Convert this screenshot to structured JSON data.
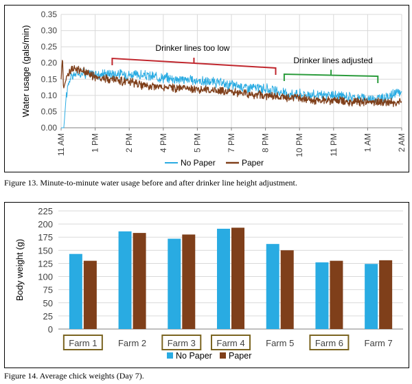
{
  "figures": {
    "fig13_caption": "Figure 13.  Minute-to-minute water usage before and after drinker line height adjustment.",
    "fig14_caption": "Figure 14.  Average chick weights (Day 7)."
  },
  "colors": {
    "no_paper": "#29ABE2",
    "paper": "#7F3F1A",
    "red_annotation": "#C0262D",
    "green_annotation": "#2A9B3B",
    "highlight_box": "#7A6420",
    "grid": "#D9D9D9",
    "axis_text": "#404040"
  },
  "chart_data": [
    {
      "type": "line",
      "title": "",
      "xlabel": "",
      "ylabel": "Water usage (gals/min)",
      "ylim": [
        0,
        0.35
      ],
      "yticks": [
        "0.00",
        "0.05",
        "0.10",
        "0.15",
        "0.20",
        "0.25",
        "0.30",
        "0.35"
      ],
      "xticks": [
        "11 AM",
        "1 PM",
        "2 PM",
        "4 PM",
        "5 PM",
        "7 PM",
        "8 PM",
        "10 PM",
        "11 PM",
        "1 AM",
        "2 AM"
      ],
      "grid": "horizontal and vertical",
      "legend": "bottom",
      "annotations": [
        {
          "text": "Drinker lines too low",
          "color": "red",
          "from_tick": 1.5,
          "to_tick": 6.3
        },
        {
          "text": "Drinker lines adjusted",
          "color": "green",
          "from_tick": 6.55,
          "to_tick": 9.3
        }
      ],
      "series": [
        {
          "name": "No Paper",
          "color_key": "no_paper",
          "x_tick_position": [
            0,
            0.08,
            0.15,
            0.25,
            0.4,
            0.6,
            0.8,
            1.0,
            1.5,
            2.0,
            2.5,
            3.0,
            3.5,
            4.0,
            4.5,
            5.0,
            5.5,
            6.0,
            6.3,
            6.5,
            7.0,
            7.5,
            8.0,
            8.5,
            9.0,
            9.5,
            9.8,
            10.0
          ],
          "values": [
            0.0,
            0.0,
            0.1,
            0.15,
            0.165,
            0.17,
            0.168,
            0.165,
            0.168,
            0.165,
            0.16,
            0.155,
            0.15,
            0.145,
            0.14,
            0.132,
            0.125,
            0.12,
            0.113,
            0.106,
            0.105,
            0.1,
            0.1,
            0.095,
            0.09,
            0.092,
            0.105,
            0.11
          ]
        },
        {
          "name": "Paper",
          "color_key": "paper",
          "x_tick_position": [
            0,
            0.04,
            0.07,
            0.12,
            0.2,
            0.3,
            0.5,
            0.8,
            1.0,
            1.5,
            2.0,
            2.5,
            3.0,
            3.5,
            4.0,
            4.5,
            5.0,
            5.5,
            6.0,
            6.3,
            6.5,
            7.0,
            7.5,
            8.0,
            8.5,
            9.0,
            9.5,
            10.0
          ],
          "values": [
            0.15,
            0.22,
            0.12,
            0.14,
            0.165,
            0.18,
            0.18,
            0.17,
            0.155,
            0.15,
            0.14,
            0.13,
            0.125,
            0.122,
            0.12,
            0.115,
            0.11,
            0.105,
            0.1,
            0.095,
            0.095,
            0.09,
            0.085,
            0.085,
            0.08,
            0.08,
            0.08,
            0.078
          ]
        }
      ]
    },
    {
      "type": "bar",
      "title": "",
      "xlabel": "",
      "ylabel": "Body weight (g)",
      "ylim": [
        0,
        225
      ],
      "yticks": [
        "0",
        "25",
        "50",
        "75",
        "100",
        "125",
        "150",
        "175",
        "200",
        "225"
      ],
      "categories": [
        "Farm 1",
        "Farm 2",
        "Farm 3",
        "Farm 4",
        "Farm 5",
        "Farm 6",
        "Farm 7"
      ],
      "highlighted_categories": [
        "Farm 1",
        "Farm 3",
        "Farm 4",
        "Farm 6"
      ],
      "grid": "horizontal",
      "legend": "bottom",
      "series": [
        {
          "name": "No Paper",
          "color_key": "no_paper",
          "values": [
            143,
            186,
            172,
            191,
            162,
            127,
            124
          ]
        },
        {
          "name": "Paper",
          "color_key": "paper",
          "values": [
            130,
            183,
            180,
            193,
            150,
            130,
            131
          ]
        }
      ]
    }
  ]
}
